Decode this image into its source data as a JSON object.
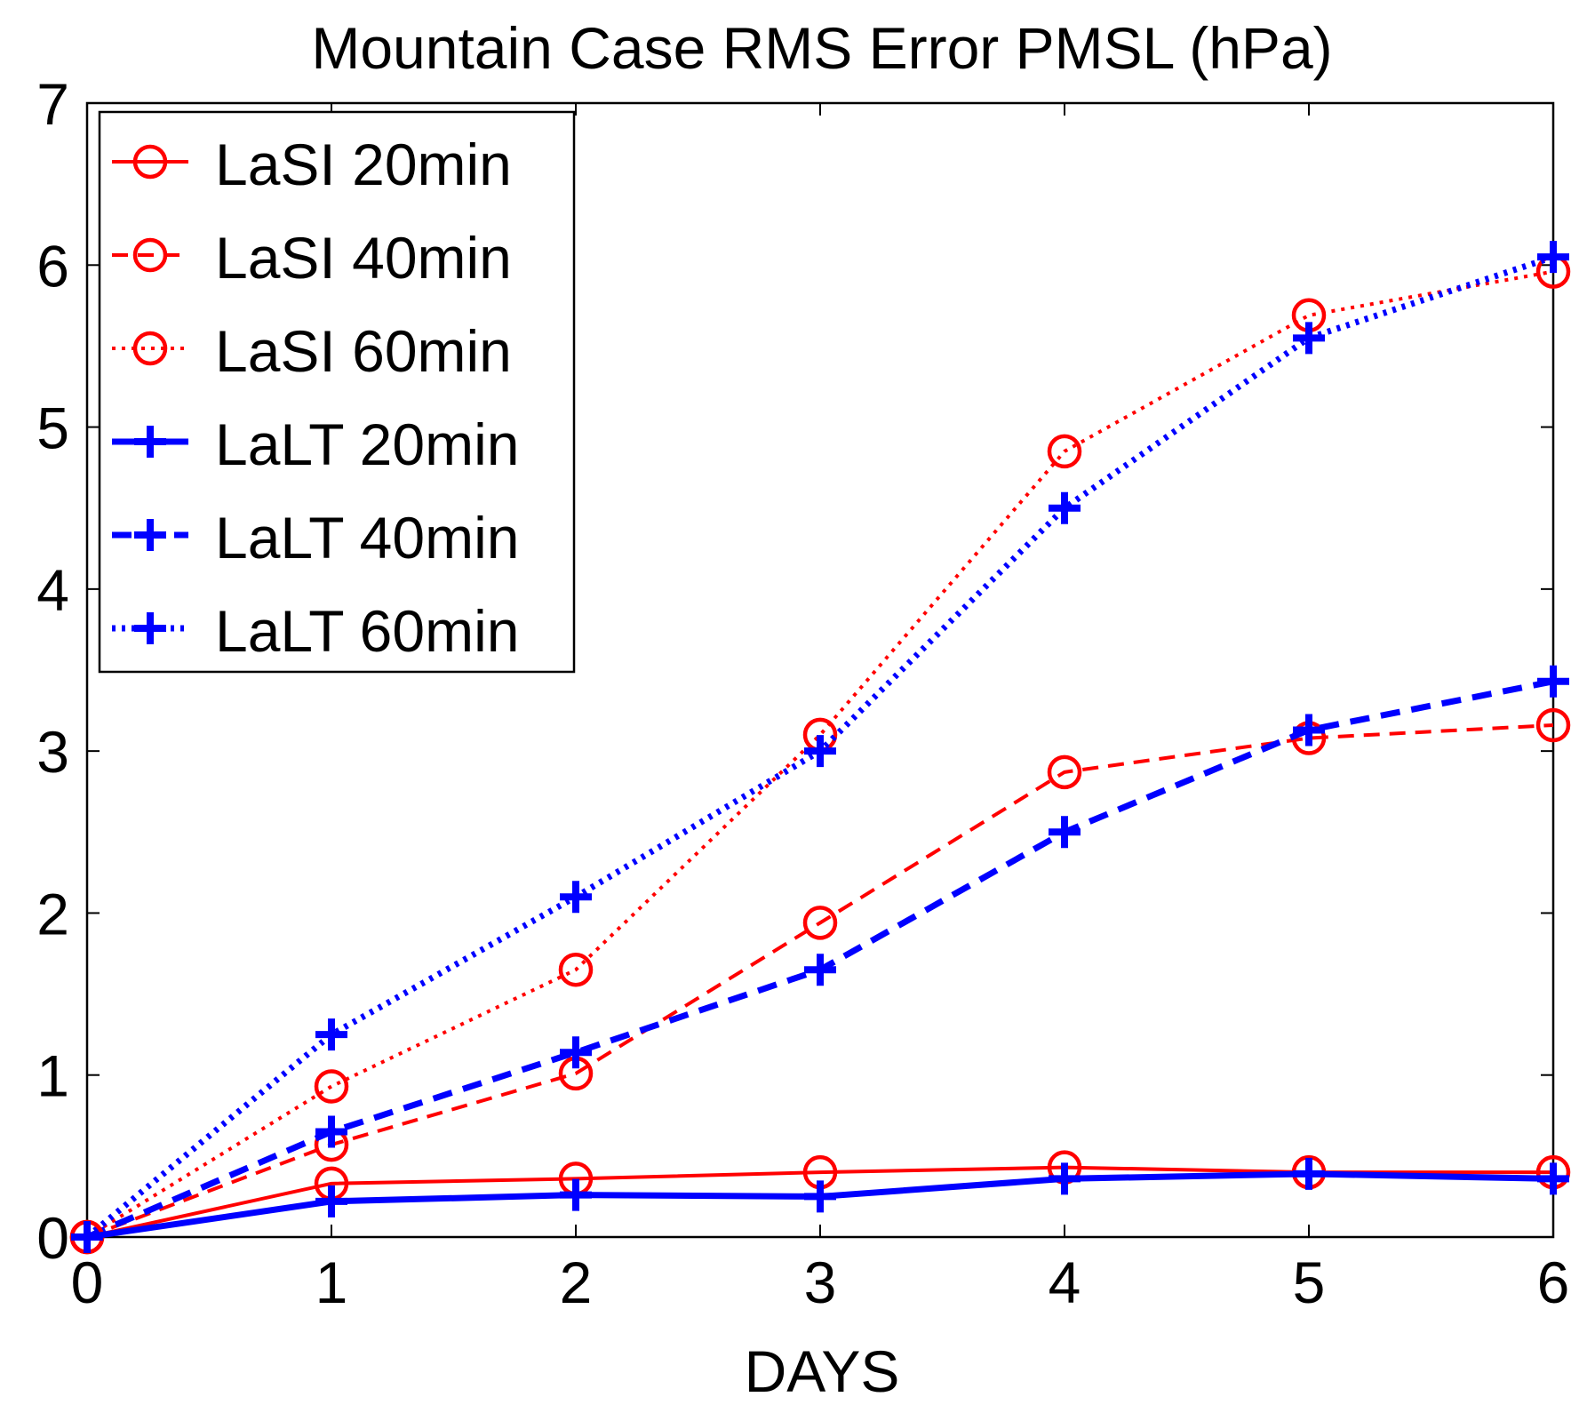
{
  "chart_data": {
    "type": "line",
    "title": "Mountain Case RMS Error PMSL (hPa)",
    "xlabel": "DAYS",
    "ylabel": "",
    "xlim": [
      0,
      6
    ],
    "ylim": [
      0,
      7
    ],
    "xticks": [
      "0",
      "1",
      "2",
      "3",
      "4",
      "5",
      "6"
    ],
    "yticks": [
      "0",
      "1",
      "2",
      "3",
      "4",
      "5",
      "6",
      "7"
    ],
    "grid": false,
    "legend_position": "top-left",
    "x": [
      0,
      1,
      2,
      3,
      4,
      5,
      6
    ],
    "series": [
      {
        "name": "LaSI 20min",
        "color": "#ff0000",
        "line": "solid",
        "marker": "circle",
        "values": [
          0.0,
          0.33,
          0.36,
          0.4,
          0.43,
          0.4,
          0.4
        ]
      },
      {
        "name": "LaSI 40min",
        "color": "#ff0000",
        "line": "dashed",
        "marker": "circle",
        "values": [
          0.0,
          0.57,
          1.01,
          1.94,
          2.87,
          3.08,
          3.16
        ]
      },
      {
        "name": "LaSI 60min",
        "color": "#ff0000",
        "line": "dotted",
        "marker": "circle",
        "values": [
          0.0,
          0.93,
          1.65,
          3.1,
          4.85,
          5.69,
          5.96
        ]
      },
      {
        "name": "LaLT 20min",
        "color": "#0000ff",
        "line": "solid",
        "marker": "plus",
        "values": [
          0.0,
          0.22,
          0.26,
          0.25,
          0.36,
          0.39,
          0.36
        ]
      },
      {
        "name": "LaLT 40min",
        "color": "#0000ff",
        "line": "dashed",
        "marker": "plus",
        "values": [
          0.0,
          0.65,
          1.14,
          1.65,
          2.5,
          3.13,
          3.43
        ]
      },
      {
        "name": "LaLT 60min",
        "color": "#0000ff",
        "line": "dotted",
        "marker": "plus",
        "values": [
          0.0,
          1.25,
          2.1,
          3.0,
          4.5,
          5.55,
          6.05
        ]
      }
    ]
  }
}
